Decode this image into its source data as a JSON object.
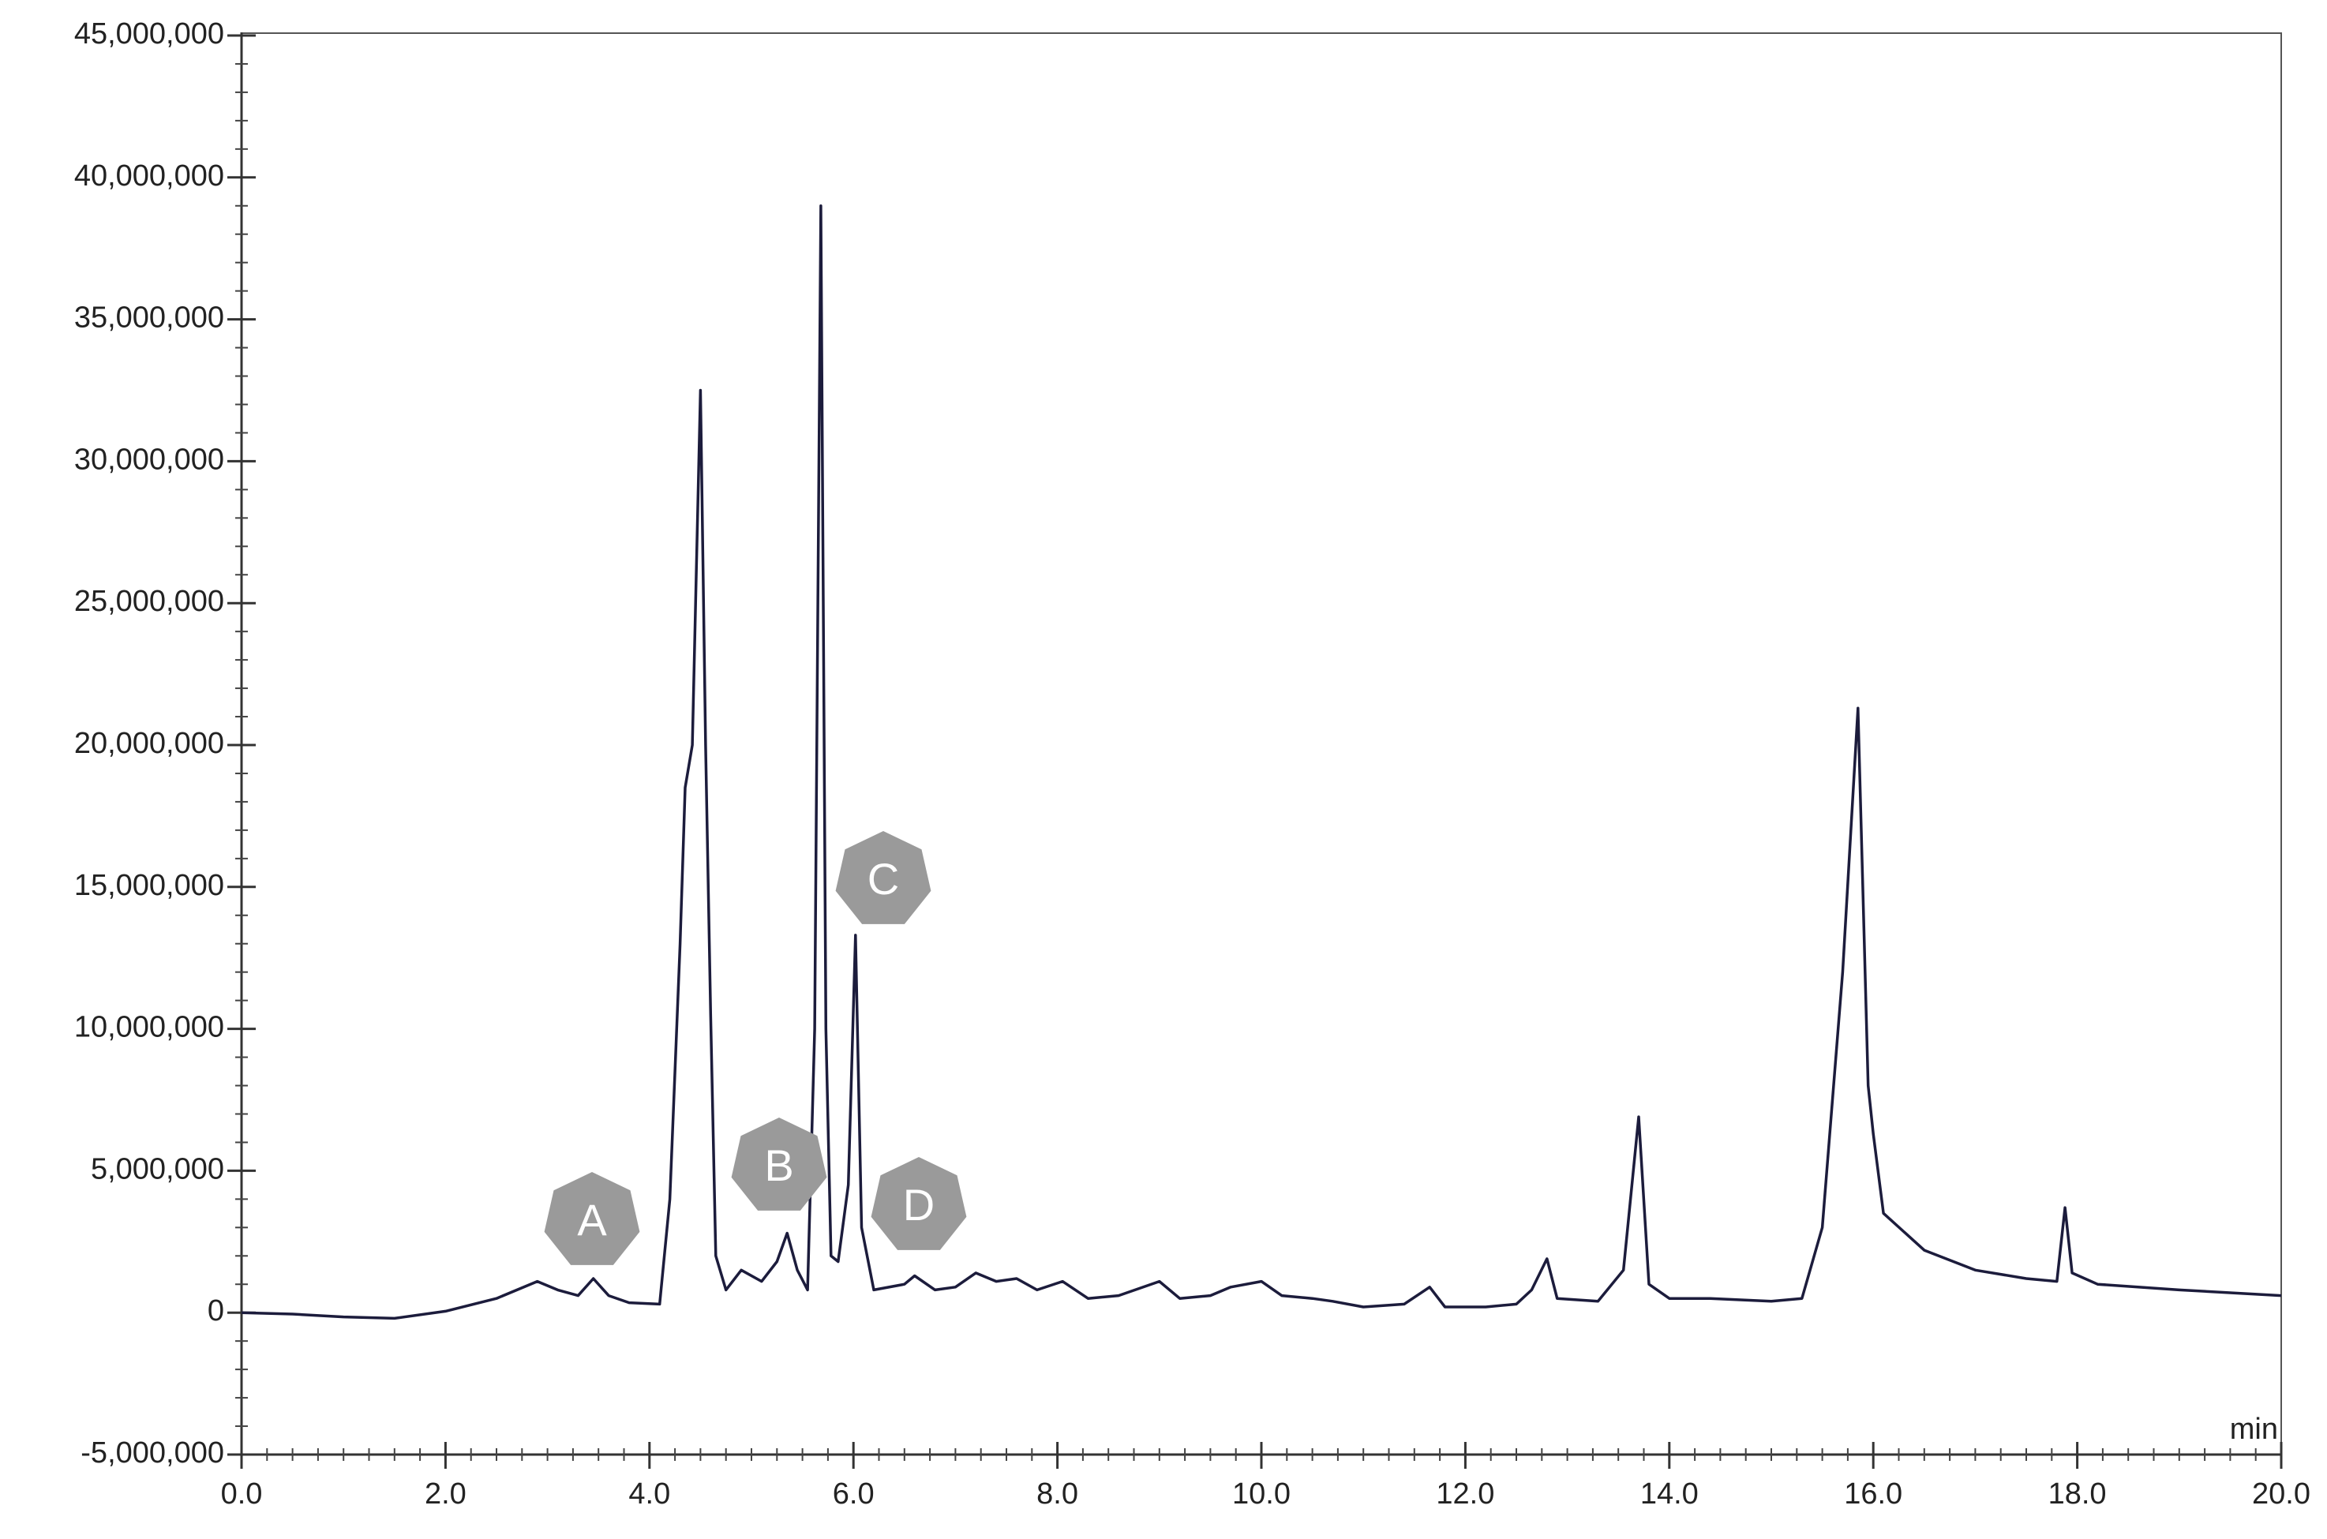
{
  "chart_data": {
    "type": "line",
    "x_label": "min",
    "annotations": [
      "A",
      "B",
      "C",
      "D"
    ],
    "x": [
      0.0,
      0.5,
      1.0,
      1.5,
      2.0,
      2.5,
      2.9,
      3.1,
      3.3,
      3.45,
      3.6,
      3.8,
      4.1,
      4.2,
      4.3,
      4.35,
      4.42,
      4.5,
      4.55,
      4.6,
      4.65,
      4.75,
      4.9,
      5.1,
      5.25,
      5.35,
      5.45,
      5.55,
      5.62,
      5.68,
      5.73,
      5.78,
      5.85,
      5.95,
      6.02,
      6.08,
      6.2,
      6.5,
      6.6,
      6.8,
      7.0,
      7.2,
      7.4,
      7.6,
      7.8,
      8.05,
      8.3,
      8.6,
      9.0,
      9.2,
      9.5,
      9.7,
      10.0,
      10.2,
      10.5,
      10.7,
      11.0,
      11.4,
      11.65,
      11.8,
      12.2,
      12.5,
      12.65,
      12.8,
      12.9,
      13.3,
      13.55,
      13.7,
      13.8,
      14.0,
      14.4,
      15.0,
      15.3,
      15.5,
      15.7,
      15.85,
      15.95,
      16.0,
      16.1,
      16.5,
      17.0,
      17.5,
      17.8,
      17.88,
      17.95,
      18.2,
      19.0,
      20.0
    ],
    "values": [
      0,
      -50000,
      -150000,
      -200000,
      50000,
      500000,
      1100000,
      800000,
      600000,
      1200000,
      600000,
      350000,
      300000,
      4000000,
      13000000,
      18500000,
      20000000,
      32500000,
      20000000,
      10500000,
      2000000,
      800000,
      1500000,
      1100000,
      1800000,
      2800000,
      1500000,
      800000,
      10000000,
      39000000,
      10000000,
      2000000,
      1800000,
      4500000,
      13300000,
      3000000,
      800000,
      1000000,
      1300000,
      800000,
      900000,
      1400000,
      1100000,
      1200000,
      800000,
      1100000,
      500000,
      600000,
      1100000,
      500000,
      600000,
      900000,
      1100000,
      600000,
      500000,
      400000,
      200000,
      300000,
      900000,
      200000,
      200000,
      300000,
      800000,
      1900000,
      500000,
      400000,
      1500000,
      6900000,
      1000000,
      500000,
      500000,
      400000,
      500000,
      3000000,
      12000000,
      21300000,
      8000000,
      6300000,
      3500000,
      2200000,
      1500000,
      1200000,
      1100000,
      3700000,
      1400000,
      1000000,
      800000,
      600000
    ],
    "color": "#1c1c3c",
    "xlim": [
      0,
      20
    ],
    "xticks": [
      {
        "value": 0,
        "label": "0.0"
      },
      {
        "value": 2,
        "label": "2.0"
      },
      {
        "value": 4,
        "label": "4.0"
      },
      {
        "value": 6,
        "label": "6.0"
      },
      {
        "value": 8,
        "label": "8.0"
      },
      {
        "value": 10,
        "label": "10.0"
      },
      {
        "value": 12,
        "label": "12.0"
      },
      {
        "value": 14,
        "label": "14.0"
      },
      {
        "value": 16,
        "label": "16.0"
      },
      {
        "value": 18,
        "label": "18.0"
      },
      {
        "value": 20,
        "label": "20.0"
      }
    ],
    "ylim": [
      -5000000,
      45000000
    ],
    "yticks": [
      {
        "value": -5000000,
        "label": "-5,000,000"
      },
      0,
      {
        "value": 5000000,
        "label": "5,000,000"
      },
      {
        "value": 10000000,
        "label": "10,000,000"
      },
      {
        "value": 15000000,
        "label": "15,000,000"
      },
      {
        "value": 20000000,
        "label": "20,000,000"
      },
      {
        "value": 25000000,
        "label": "25,000,000"
      },
      {
        "value": 30000000,
        "label": "30,000,000"
      },
      {
        "value": 35000000,
        "label": "35,000,000"
      },
      {
        "value": 40000000,
        "label": "40,000,000"
      },
      {
        "value": 45000000,
        "label": "45,000,000"
      }
    ],
    "grid": false
  }
}
